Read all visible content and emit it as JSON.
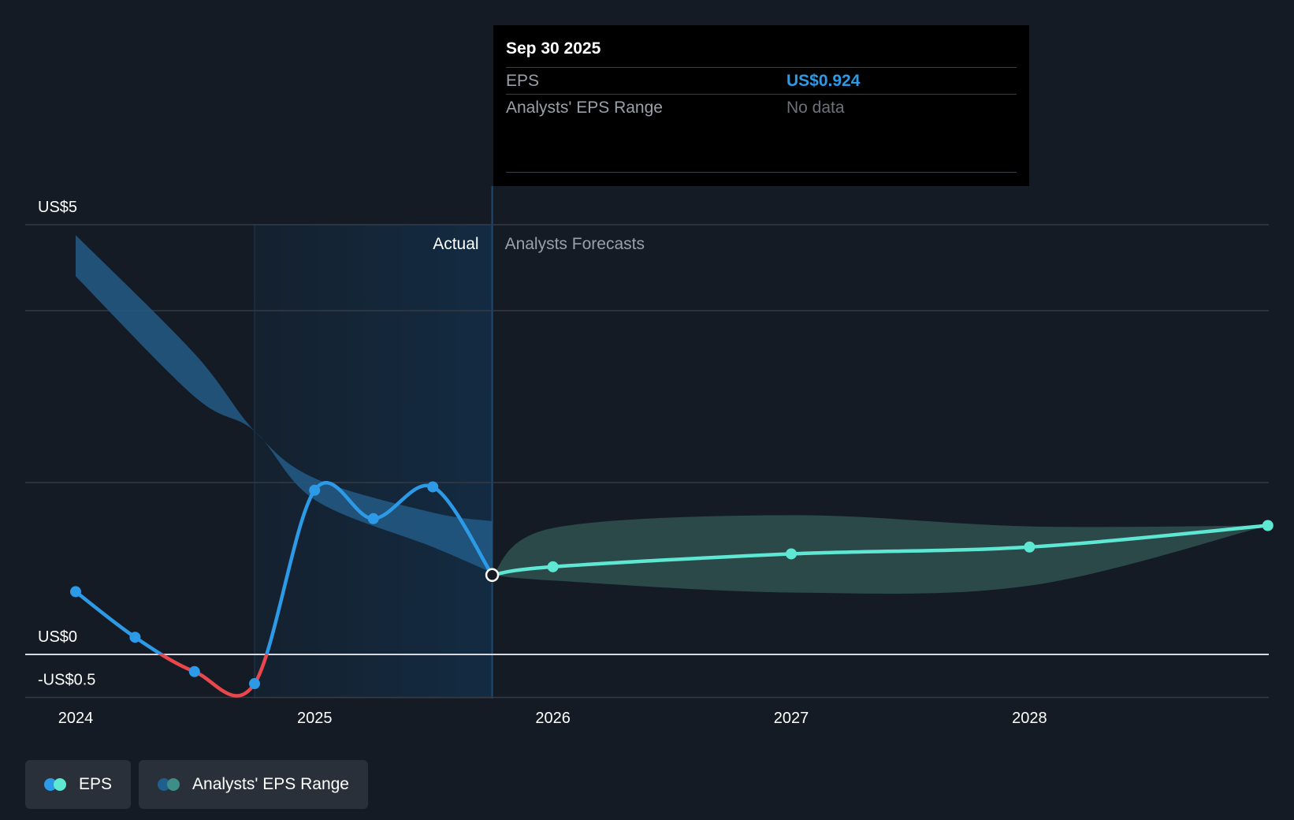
{
  "tooltip": {
    "date": "Sep 30 2025",
    "eps_label": "EPS",
    "eps_value": "US$0.924",
    "range_label": "Analysts' EPS Range",
    "range_value": "No data"
  },
  "legend": [
    {
      "label": "EPS",
      "colors": [
        "#2d9ae8",
        "#5ee8d4"
      ]
    },
    {
      "label": "Analysts' EPS Range",
      "colors": [
        "#1f5f8e",
        "#3d8e86"
      ]
    }
  ],
  "colors": {
    "background": "#151b24",
    "eps_actual": "#2d9ae8",
    "eps_negative": "#e8474c",
    "eps_forecast": "#5ee8d4",
    "range_past": "#235a86",
    "range_forecast": "#2d4c4d",
    "actual_shade": "#132b42"
  },
  "chart_data": {
    "type": "line",
    "y_tick_labels": [
      {
        "value": 5,
        "label": "US$5"
      },
      {
        "value": 0,
        "label": "US$0"
      },
      {
        "value": -0.5,
        "label": "-US$0.5"
      }
    ],
    "x_tick_labels": [
      "2024",
      "2025",
      "2026",
      "2027",
      "2028"
    ],
    "ylim": [
      -0.5,
      5
    ],
    "xlim": [
      "2024-01-01",
      "2028-12-31"
    ],
    "gridlines": [
      5,
      4,
      2,
      0,
      -0.5
    ],
    "region_labels": {
      "actual": "Actual",
      "forecast": "Analysts Forecasts"
    },
    "actual_region": [
      "2024-10-01",
      "2025-09-30"
    ],
    "series": [
      {
        "name": "EPS",
        "kind": "actual",
        "x": [
          "2024-01-01",
          "2024-04-01",
          "2024-07-01",
          "2024-10-01",
          "2025-01-01",
          "2025-04-01",
          "2025-07-01",
          "2025-09-30"
        ],
        "y": [
          0.73,
          0.2,
          -0.2,
          -0.34,
          1.91,
          1.58,
          1.95,
          0.924
        ]
      },
      {
        "name": "EPS",
        "kind": "forecast",
        "x": [
          "2025-09-30",
          "2026-01-01",
          "2027-01-01",
          "2028-01-01",
          "2028-12-31"
        ],
        "y": [
          0.924,
          1.02,
          1.17,
          1.25,
          1.5
        ]
      }
    ],
    "range_bands": [
      {
        "name": "Analysts' EPS Range",
        "kind": "past",
        "x": [
          "2024-01-01",
          "2024-07-01",
          "2024-10-01",
          "2025-01-01",
          "2025-07-01",
          "2025-09-30"
        ],
        "low": [
          4.4,
          3.0,
          2.6,
          1.8,
          1.25,
          0.95
        ],
        "high": [
          4.88,
          3.5,
          2.6,
          2.05,
          1.65,
          1.55
        ]
      },
      {
        "name": "Analysts' EPS Range",
        "kind": "forecast",
        "x": [
          "2025-09-30",
          "2026-01-01",
          "2027-01-01",
          "2028-01-01",
          "2028-12-31"
        ],
        "low": [
          0.924,
          0.86,
          0.72,
          0.8,
          1.5
        ],
        "high": [
          0.924,
          1.47,
          1.62,
          1.49,
          1.5
        ]
      }
    ]
  }
}
